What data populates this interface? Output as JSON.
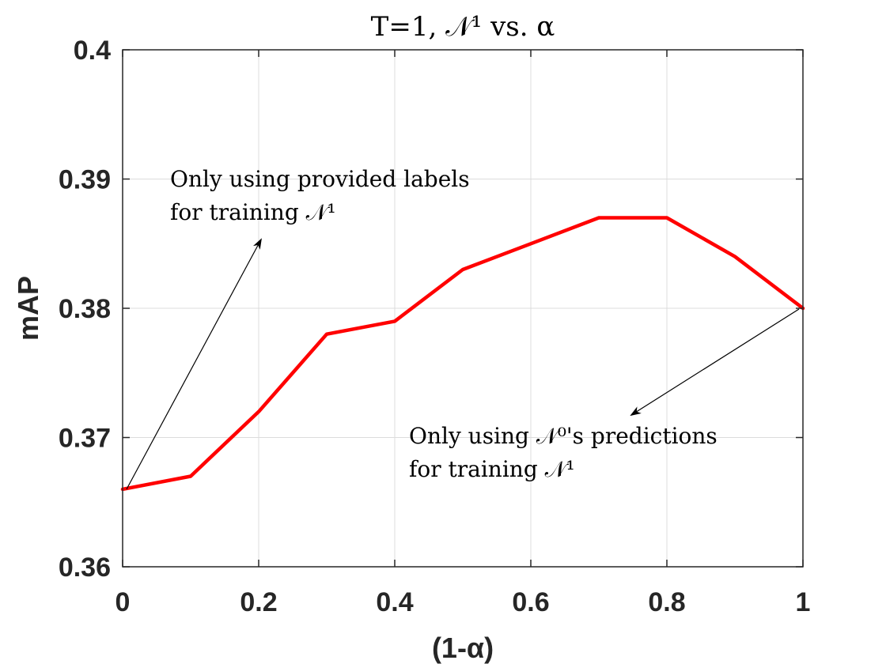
{
  "chart_data": {
    "type": "line",
    "title": "T=1, 𝒩¹ vs. α",
    "xlabel": "(1-α)",
    "ylabel": "mAP",
    "xlim": [
      0,
      1
    ],
    "ylim": [
      0.36,
      0.4
    ],
    "grid": true,
    "x_ticks": [
      "0",
      "0.2",
      "0.4",
      "0.6",
      "0.8",
      "1"
    ],
    "y_ticks": [
      "0.36",
      "0.37",
      "0.38",
      "0.39",
      "0.4"
    ],
    "series": [
      {
        "name": "mAP",
        "color": "#ff0000",
        "x": [
          0,
          0.1,
          0.2,
          0.3,
          0.4,
          0.5,
          0.6,
          0.7,
          0.8,
          0.9,
          1.0
        ],
        "y": [
          0.366,
          0.367,
          0.372,
          0.378,
          0.379,
          0.383,
          0.385,
          0.387,
          0.387,
          0.384,
          0.38
        ]
      }
    ],
    "annotations": [
      {
        "lines": [
          "Only using provided labels",
          "for training 𝒩¹"
        ],
        "points_to": [
          0,
          0.366
        ]
      },
      {
        "lines": [
          "Only using 𝒩⁰'s predictions",
          "for training 𝒩¹"
        ],
        "points_to": [
          1,
          0.38
        ]
      }
    ]
  }
}
